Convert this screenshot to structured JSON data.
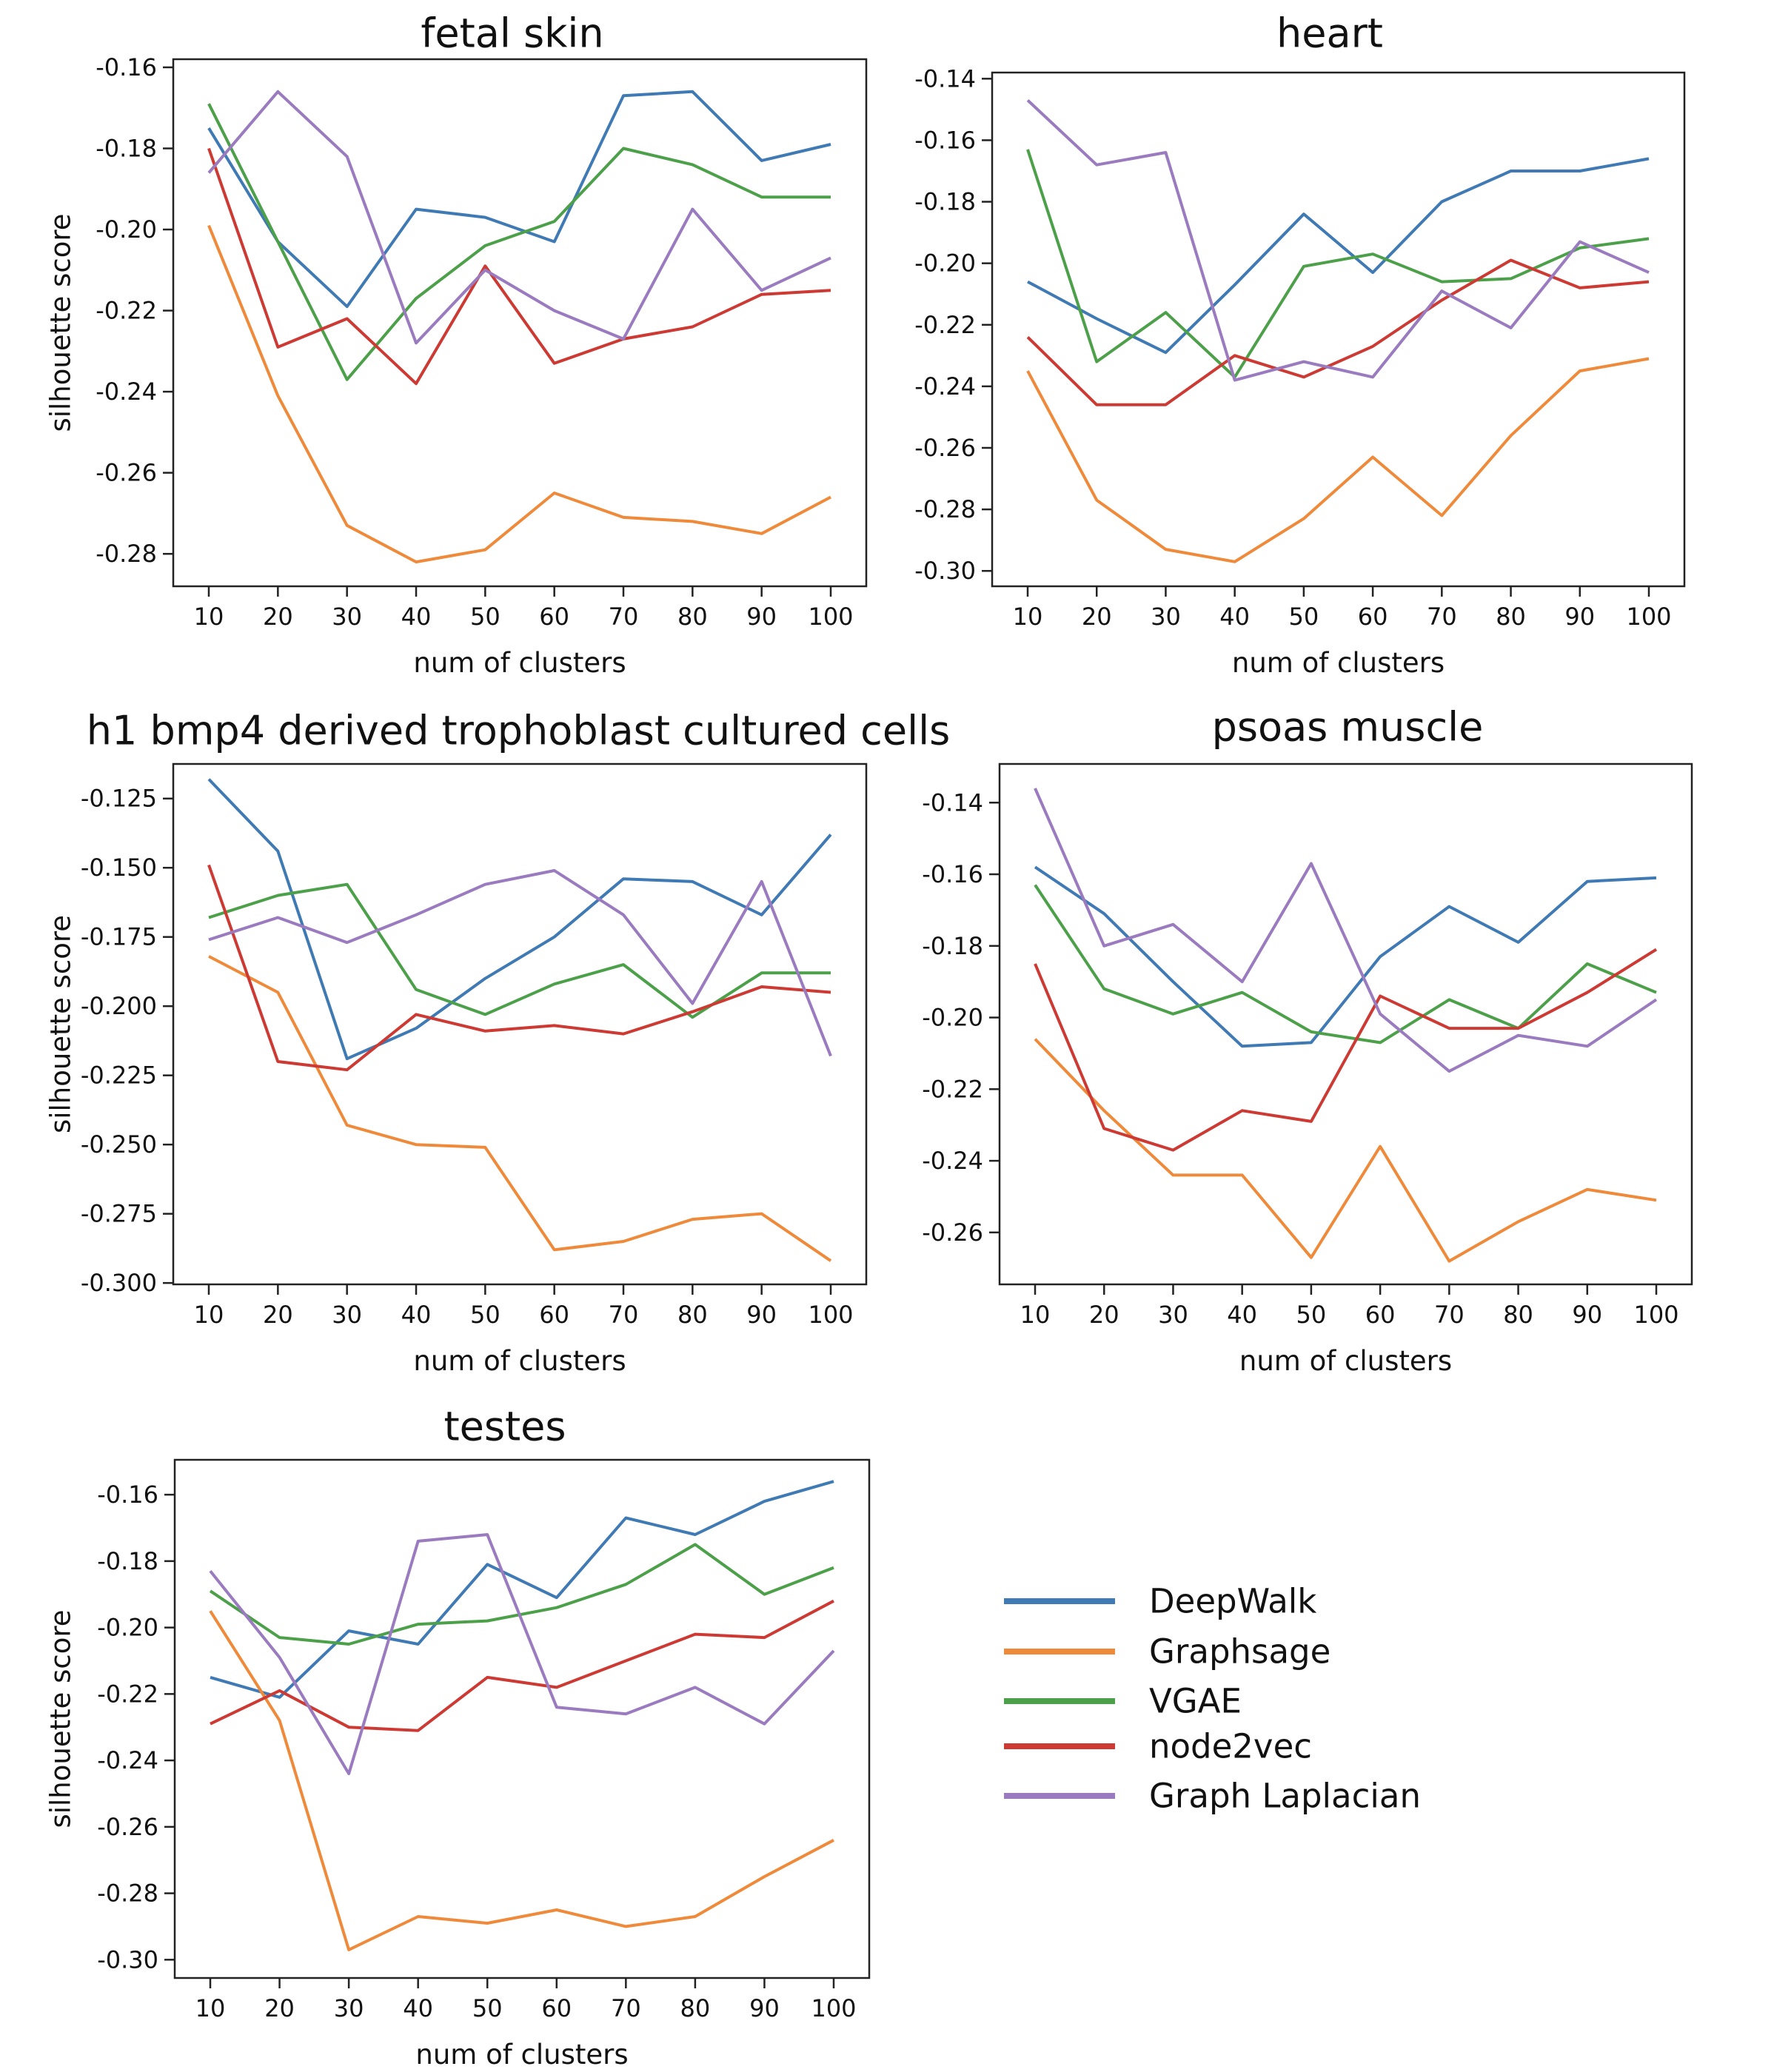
{
  "colors": {
    "DeepWalk": "#3f7ab5",
    "Graphsage": "#ee8a3a",
    "VGAE": "#4da04a",
    "node2vec": "#cc3a33",
    "Graph Laplacian": "#9a7bbf"
  },
  "legend": {
    "items": [
      "DeepWalk",
      "Graphsage",
      "VGAE",
      "node2vec",
      "Graph Laplacian"
    ],
    "placement": "bottom-right"
  },
  "chart_data": [
    {
      "type": "line",
      "title": "fetal skin",
      "xlabel": "num of clusters",
      "ylabel": "silhouette score",
      "x": [
        10,
        20,
        30,
        40,
        50,
        60,
        70,
        80,
        90,
        100
      ],
      "xticks": [
        "10",
        "20",
        "30",
        "40",
        "50",
        "60",
        "70",
        "80",
        "90",
        "100"
      ],
      "yticks": [
        -0.28,
        -0.26,
        -0.24,
        -0.22,
        -0.2,
        -0.18,
        -0.16
      ],
      "yticklabels": [
        "-0.28",
        "-0.26",
        "-0.24",
        "-0.22",
        "-0.20",
        "-0.18",
        "-0.16"
      ],
      "ylim": [
        -0.288,
        -0.158
      ],
      "grid": false,
      "series": [
        {
          "name": "DeepWalk",
          "values": [
            -0.175,
            -0.203,
            -0.219,
            -0.195,
            -0.197,
            -0.203,
            -0.167,
            -0.166,
            -0.183,
            -0.179
          ]
        },
        {
          "name": "Graphsage",
          "values": [
            -0.199,
            -0.241,
            -0.273,
            -0.282,
            -0.279,
            -0.265,
            -0.271,
            -0.272,
            -0.275,
            -0.266
          ]
        },
        {
          "name": "VGAE",
          "values": [
            -0.169,
            -0.203,
            -0.237,
            -0.217,
            -0.204,
            -0.198,
            -0.18,
            -0.184,
            -0.192,
            -0.192
          ]
        },
        {
          "name": "node2vec",
          "values": [
            -0.18,
            -0.229,
            -0.222,
            -0.238,
            -0.209,
            -0.233,
            -0.227,
            -0.224,
            -0.216,
            -0.215
          ]
        },
        {
          "name": "Graph Laplacian",
          "values": [
            -0.186,
            -0.166,
            -0.182,
            -0.228,
            -0.21,
            -0.22,
            -0.227,
            -0.195,
            -0.215,
            -0.207
          ]
        }
      ]
    },
    {
      "type": "line",
      "title": "heart",
      "xlabel": "num of clusters",
      "ylabel": "",
      "x": [
        10,
        20,
        30,
        40,
        50,
        60,
        70,
        80,
        90,
        100
      ],
      "xticks": [
        "10",
        "20",
        "30",
        "40",
        "50",
        "60",
        "70",
        "80",
        "90",
        "100"
      ],
      "yticks": [
        -0.3,
        -0.28,
        -0.26,
        -0.24,
        -0.22,
        -0.2,
        -0.18,
        -0.16,
        -0.14
      ],
      "yticklabels": [
        "-0.30",
        "-0.28",
        "-0.26",
        "-0.24",
        "-0.22",
        "-0.20",
        "-0.18",
        "-0.16",
        "-0.14"
      ],
      "ylim": [
        -0.305,
        -0.138
      ],
      "grid": false,
      "series": [
        {
          "name": "DeepWalk",
          "values": [
            -0.206,
            -0.218,
            -0.229,
            -0.207,
            -0.184,
            -0.203,
            -0.18,
            -0.17,
            -0.17,
            -0.166
          ]
        },
        {
          "name": "Graphsage",
          "values": [
            -0.235,
            -0.277,
            -0.293,
            -0.297,
            -0.283,
            -0.263,
            -0.282,
            -0.256,
            -0.235,
            -0.231
          ]
        },
        {
          "name": "VGAE",
          "values": [
            -0.163,
            -0.232,
            -0.216,
            -0.237,
            -0.201,
            -0.197,
            -0.206,
            -0.205,
            -0.195,
            -0.192
          ]
        },
        {
          "name": "node2vec",
          "values": [
            -0.224,
            -0.246,
            -0.246,
            -0.23,
            -0.237,
            -0.227,
            -0.212,
            -0.199,
            -0.208,
            -0.206
          ]
        },
        {
          "name": "Graph Laplacian",
          "values": [
            -0.147,
            -0.168,
            -0.164,
            -0.238,
            -0.232,
            -0.237,
            -0.209,
            -0.221,
            -0.193,
            -0.203
          ]
        }
      ]
    },
    {
      "type": "line",
      "title": "h1 bmp4 derived trophoblast cultured cells",
      "xlabel": "num of clusters",
      "ylabel": "silhouette score",
      "x": [
        10,
        20,
        30,
        40,
        50,
        60,
        70,
        80,
        90,
        100
      ],
      "xticks": [
        "10",
        "20",
        "30",
        "40",
        "50",
        "60",
        "70",
        "80",
        "90",
        "100"
      ],
      "yticks": [
        -0.3,
        -0.275,
        -0.25,
        -0.225,
        -0.2,
        -0.175,
        -0.15,
        -0.125
      ],
      "yticklabels": [
        "-0.300",
        "-0.275",
        "-0.250",
        "-0.225",
        "-0.200",
        "-0.175",
        "-0.150",
        "-0.125"
      ],
      "ylim": [
        -0.3005,
        -0.1125
      ],
      "grid": false,
      "series": [
        {
          "name": "DeepWalk",
          "values": [
            -0.118,
            -0.144,
            -0.219,
            -0.208,
            -0.19,
            -0.175,
            -0.154,
            -0.155,
            -0.167,
            -0.138
          ]
        },
        {
          "name": "Graphsage",
          "values": [
            -0.182,
            -0.195,
            -0.243,
            -0.25,
            -0.251,
            -0.288,
            -0.285,
            -0.277,
            -0.275,
            -0.292
          ]
        },
        {
          "name": "VGAE",
          "values": [
            -0.168,
            -0.16,
            -0.156,
            -0.194,
            -0.203,
            -0.192,
            -0.185,
            -0.204,
            -0.188,
            -0.188
          ]
        },
        {
          "name": "node2vec",
          "values": [
            -0.149,
            -0.22,
            -0.223,
            -0.203,
            -0.209,
            -0.207,
            -0.21,
            -0.202,
            -0.193,
            -0.195
          ]
        },
        {
          "name": "Graph Laplacian",
          "values": [
            -0.176,
            -0.168,
            -0.177,
            -0.167,
            -0.156,
            -0.151,
            -0.167,
            -0.199,
            -0.155,
            -0.218
          ]
        }
      ]
    },
    {
      "type": "line",
      "title": "psoas muscle",
      "xlabel": "num of clusters",
      "ylabel": "",
      "x": [
        10,
        20,
        30,
        40,
        50,
        60,
        70,
        80,
        90,
        100
      ],
      "xticks": [
        "10",
        "20",
        "30",
        "40",
        "50",
        "60",
        "70",
        "80",
        "90",
        "100"
      ],
      "yticks": [
        -0.26,
        -0.24,
        -0.22,
        -0.2,
        -0.18,
        -0.16,
        -0.14
      ],
      "yticklabels": [
        "-0.26",
        "-0.24",
        "-0.22",
        "-0.20",
        "-0.18",
        "-0.16",
        "-0.14"
      ],
      "ylim": [
        -0.2745,
        -0.1292
      ],
      "grid": false,
      "series": [
        {
          "name": "DeepWalk",
          "values": [
            -0.158,
            -0.171,
            -0.19,
            -0.208,
            -0.207,
            -0.183,
            -0.169,
            -0.179,
            -0.162,
            -0.161
          ]
        },
        {
          "name": "Graphsage",
          "values": [
            -0.206,
            -0.226,
            -0.244,
            -0.244,
            -0.267,
            -0.236,
            -0.268,
            -0.257,
            -0.248,
            -0.251
          ]
        },
        {
          "name": "VGAE",
          "values": [
            -0.163,
            -0.192,
            -0.199,
            -0.193,
            -0.204,
            -0.207,
            -0.195,
            -0.203,
            -0.185,
            -0.193
          ]
        },
        {
          "name": "node2vec",
          "values": [
            -0.185,
            -0.231,
            -0.237,
            -0.226,
            -0.229,
            -0.194,
            -0.203,
            -0.203,
            -0.193,
            -0.181
          ]
        },
        {
          "name": "Graph Laplacian",
          "values": [
            -0.136,
            -0.18,
            -0.174,
            -0.19,
            -0.157,
            -0.199,
            -0.215,
            -0.205,
            -0.208,
            -0.195
          ]
        }
      ]
    },
    {
      "type": "line",
      "title": "testes",
      "xlabel": "num of clusters",
      "ylabel": "silhouette score",
      "x": [
        10,
        20,
        30,
        40,
        50,
        60,
        70,
        80,
        90,
        100
      ],
      "xticks": [
        "10",
        "20",
        "30",
        "40",
        "50",
        "60",
        "70",
        "80",
        "90",
        "100"
      ],
      "yticks": [
        -0.3,
        -0.28,
        -0.26,
        -0.24,
        -0.22,
        -0.2,
        -0.18,
        -0.16
      ],
      "yticklabels": [
        "-0.30",
        "-0.28",
        "-0.26",
        "-0.24",
        "-0.22",
        "-0.20",
        "-0.18",
        "-0.16"
      ],
      "ylim": [
        -0.3055,
        -0.1495
      ],
      "grid": false,
      "series": [
        {
          "name": "DeepWalk",
          "values": [
            -0.215,
            -0.221,
            -0.201,
            -0.205,
            -0.181,
            -0.191,
            -0.167,
            -0.172,
            -0.162,
            -0.156
          ]
        },
        {
          "name": "Graphsage",
          "values": [
            -0.195,
            -0.228,
            -0.297,
            -0.287,
            -0.289,
            -0.285,
            -0.29,
            -0.287,
            -0.275,
            -0.264
          ]
        },
        {
          "name": "VGAE",
          "values": [
            -0.189,
            -0.203,
            -0.205,
            -0.199,
            -0.198,
            -0.194,
            -0.187,
            -0.175,
            -0.19,
            -0.182
          ]
        },
        {
          "name": "node2vec",
          "values": [
            -0.229,
            -0.219,
            -0.23,
            -0.231,
            -0.215,
            -0.218,
            -0.21,
            -0.202,
            -0.203,
            -0.192
          ]
        },
        {
          "name": "Graph Laplacian",
          "values": [
            -0.183,
            -0.209,
            -0.244,
            -0.174,
            -0.172,
            -0.224,
            -0.226,
            -0.218,
            -0.229,
            -0.207
          ]
        }
      ]
    }
  ]
}
